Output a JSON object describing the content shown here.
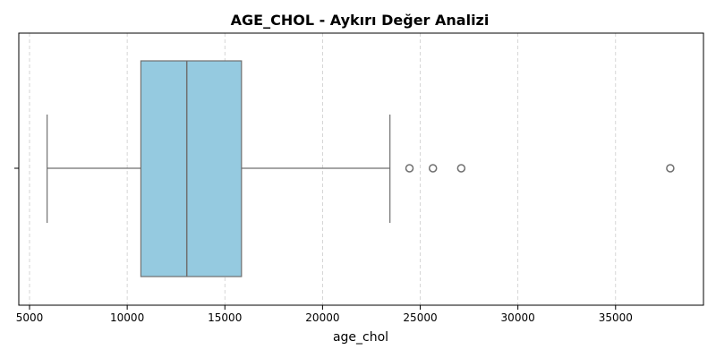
{
  "chart_data": {
    "type": "box",
    "title": "AGE_CHOL - Aykırı Değer Analizi",
    "xlabel": "age_chol",
    "ylabel": "",
    "xlim": [
      4450,
      39500
    ],
    "xticks": [
      5000,
      10000,
      15000,
      20000,
      25000,
      30000,
      35000
    ],
    "grid": "x-dashed",
    "orientation": "horizontal",
    "box": {
      "whisker_low": 5900,
      "q1": 10700,
      "median": 13050,
      "q3": 15850,
      "whisker_high": 23450,
      "outliers": [
        24450,
        25650,
        27100,
        37800
      ]
    },
    "colors": {
      "box_fill": "#95cae0",
      "line": "#6f6f6f",
      "grid": "#cccccc"
    }
  }
}
